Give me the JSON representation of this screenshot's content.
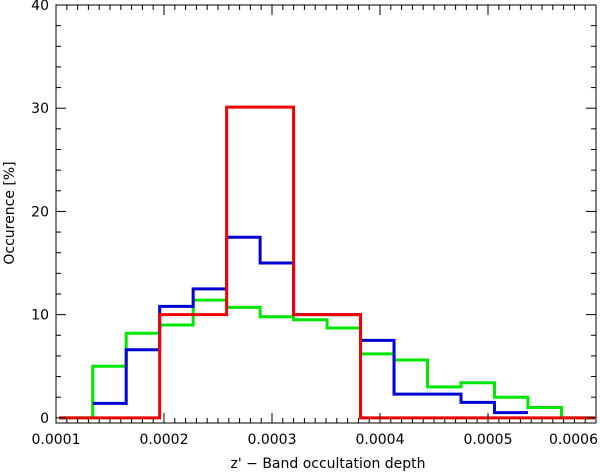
{
  "chart_data": {
    "type": "step",
    "title": "",
    "xlabel": "z' − Band occultation depth",
    "ylabel": "Occurence [%]",
    "xlim": [
      0.0001,
      0.0006
    ],
    "ylim": [
      -0.5,
      40
    ],
    "x_ticks": [
      {
        "value": 0.0001,
        "label": "0.0001"
      },
      {
        "value": 0.0002,
        "label": "0.0002"
      },
      {
        "value": 0.0003,
        "label": "0.0003"
      },
      {
        "value": 0.0004,
        "label": "0.0004"
      },
      {
        "value": 0.0005,
        "label": "0.0005"
      },
      {
        "value": 0.0006,
        "label": "0.0006"
      }
    ],
    "y_ticks": [
      {
        "value": 0,
        "label": "0"
      },
      {
        "value": 10,
        "label": "10"
      },
      {
        "value": 20,
        "label": "20"
      },
      {
        "value": 30,
        "label": "30"
      },
      {
        "value": 40,
        "label": "40"
      }
    ],
    "grid": false,
    "series": [
      {
        "color": "#00e600",
        "edges": [
          0.000103,
          0.000134,
          0.000165,
          0.000196,
          0.000227,
          0.000258,
          0.000289,
          0.00032,
          0.000351,
          0.000382,
          0.000413,
          0.000444,
          0.000475,
          0.000506,
          0.000537,
          0.000568,
          0.000599
        ],
        "values": [
          0,
          5,
          8.2,
          9,
          11.4,
          10.7,
          9.8,
          9.5,
          8.7,
          6.2,
          5.6,
          3,
          3.4,
          2,
          1,
          0
        ]
      },
      {
        "color": "#0000d0",
        "edges": [
          0.000134,
          0.000165,
          0.000196,
          0.000227,
          0.000258,
          0.000289,
          0.00032,
          0.000351,
          0.000382,
          0.000413,
          0.000444,
          0.000475,
          0.000506,
          0.000537
        ],
        "values": [
          1.4,
          6.6,
          10.8,
          12.5,
          17.5,
          15,
          10,
          10,
          7.5,
          2.3,
          2.3,
          1.5,
          0.5
        ]
      },
      {
        "color": "#ee0000",
        "edges": [
          0.000103,
          0.000196,
          0.000258,
          0.00032,
          0.000382,
          0.000599
        ],
        "values": [
          0,
          10,
          30.1,
          10,
          0
        ]
      }
    ]
  }
}
